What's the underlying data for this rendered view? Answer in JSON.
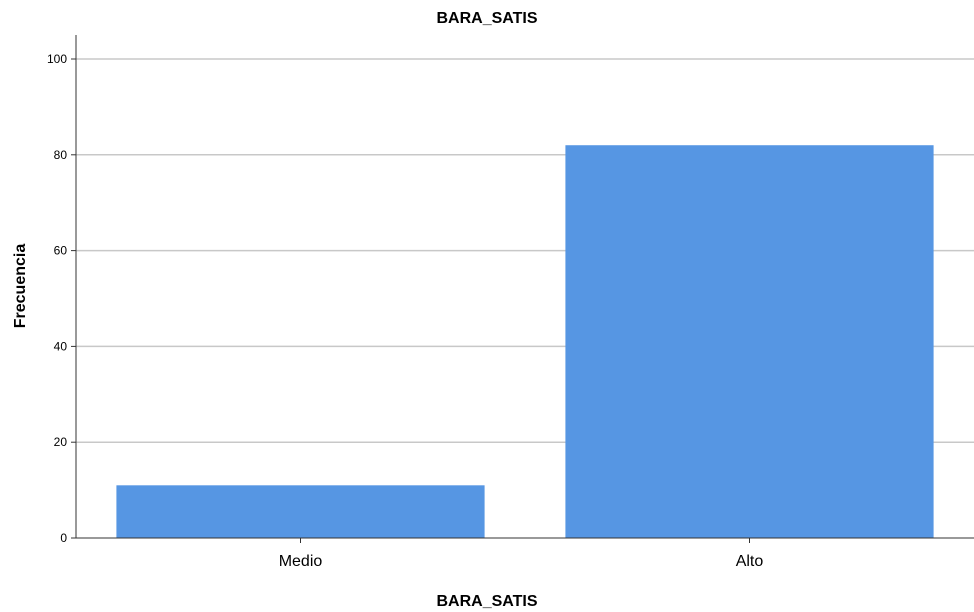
{
  "chart_data": {
    "type": "bar",
    "title": "BARA_SATIS",
    "xlabel": "BARA_SATIS",
    "ylabel": "Frecuencia",
    "categories": [
      "Medio",
      "Alto"
    ],
    "values": [
      11,
      82
    ],
    "ylim": [
      0,
      105
    ],
    "yticks": [
      0,
      20,
      40,
      60,
      80,
      100
    ],
    "grid": true,
    "bar_color": "#5696e3"
  }
}
